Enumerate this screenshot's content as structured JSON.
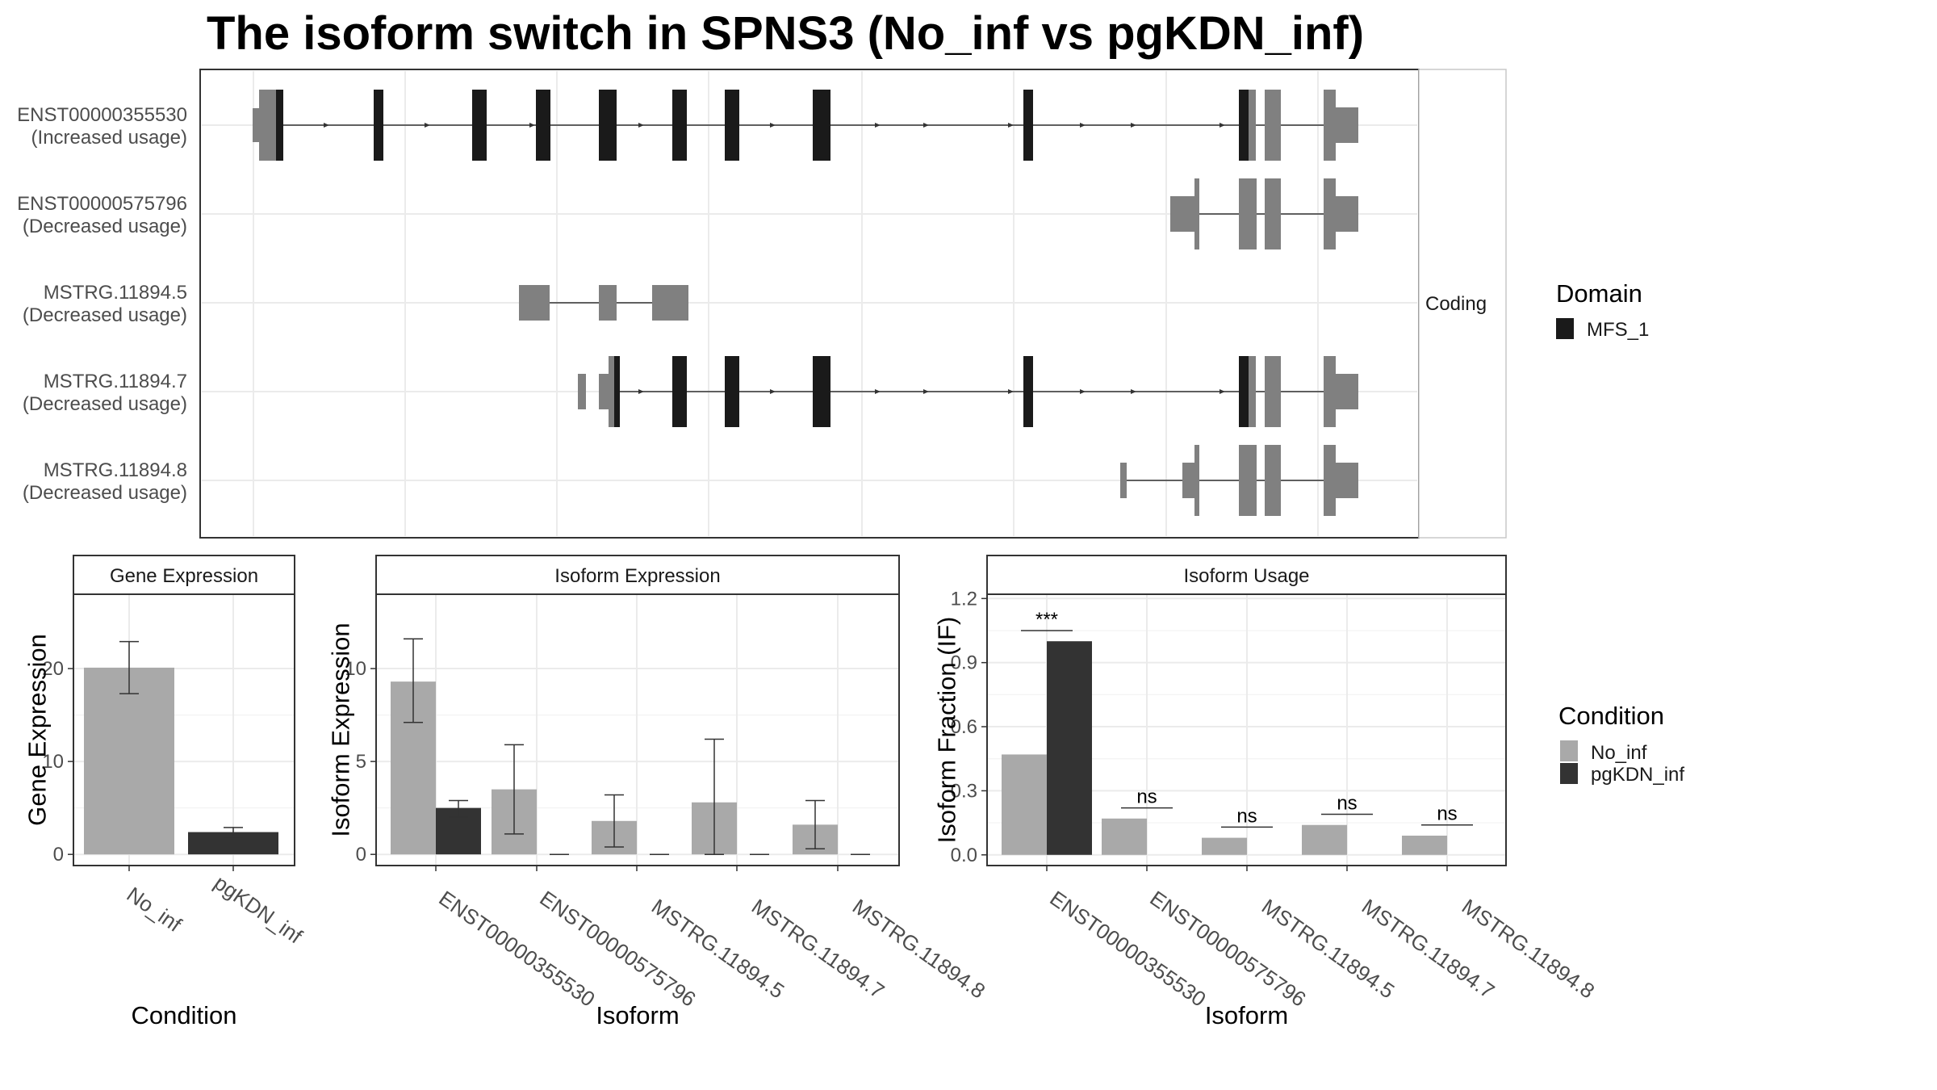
{
  "title": "The isoform switch in SPNS3 (No_inf vs pgKDN_inf)",
  "colors": {
    "no_inf": "#a9a9a9",
    "pgkdn_inf": "#333333",
    "domain": "#1a1a1a",
    "utr": "#808080",
    "grid": "#ebebeb"
  },
  "structure": {
    "strip_label": "Coding",
    "transcripts": [
      {
        "id": "ENST00000355530",
        "usage": "(Increased usage)"
      },
      {
        "id": "ENST00000575796",
        "usage": "(Decreased usage)"
      },
      {
        "id": "MSTRG.11894.5",
        "usage": "(Decreased usage)"
      },
      {
        "id": "MSTRG.11894.7",
        "usage": "(Decreased usage)"
      },
      {
        "id": "MSTRG.11894.8",
        "usage": "(Decreased usage)"
      }
    ],
    "legend": {
      "title": "Domain",
      "items": [
        "MFS_1"
      ]
    }
  },
  "condition_legend": {
    "title": "Condition",
    "items": [
      "No_inf",
      "pgKDN_inf"
    ]
  },
  "chart_data": [
    {
      "type": "bar",
      "panel_title": "Gene Expression",
      "xlabel": "Condition",
      "ylabel": "Gene Expression",
      "categories": [
        "No_inf",
        "pgKDN_inf"
      ],
      "values": [
        20.1,
        2.4
      ],
      "error_low": [
        17.3,
        1.9
      ],
      "error_high": [
        22.9,
        2.9
      ],
      "ylim": [
        -1.2,
        28
      ],
      "yticks": [
        0,
        10,
        20
      ]
    },
    {
      "type": "bar",
      "panel_title": "Isoform Expression",
      "xlabel": "Isoform",
      "ylabel": "Isoform Expression",
      "categories": [
        "ENST00000355530",
        "ENST00000575796",
        "MSTRG.11894.5",
        "MSTRG.11894.7",
        "MSTRG.11894.8"
      ],
      "series": [
        {
          "name": "No_inf",
          "values": [
            9.3,
            3.5,
            1.8,
            2.8,
            1.6
          ],
          "error_low": [
            7.1,
            1.1,
            0.4,
            0.0,
            0.3
          ],
          "error_high": [
            11.6,
            5.9,
            3.2,
            6.2,
            2.9
          ]
        },
        {
          "name": "pgKDN_inf",
          "values": [
            2.5,
            0.0,
            0.0,
            0.0,
            0.0
          ],
          "error_low": [
            2.0,
            0.0,
            0.0,
            0.0,
            0.0
          ],
          "error_high": [
            2.9,
            0.0,
            0.0,
            0.0,
            0.0
          ]
        }
      ],
      "ylim": [
        -0.6,
        14
      ],
      "yticks": [
        0,
        5,
        10
      ]
    },
    {
      "type": "bar",
      "panel_title": "Isoform Usage",
      "xlabel": "Isoform",
      "ylabel": "Isoform Fraction (IF)",
      "categories": [
        "ENST00000355530",
        "ENST00000575796",
        "MSTRG.11894.5",
        "MSTRG.11894.7",
        "MSTRG.11894.8"
      ],
      "series": [
        {
          "name": "No_inf",
          "values": [
            0.47,
            0.17,
            0.08,
            0.14,
            0.09
          ]
        },
        {
          "name": "pgKDN_inf",
          "values": [
            1.0,
            0.0,
            0.0,
            0.0,
            0.0
          ]
        }
      ],
      "significance": [
        "***",
        "ns",
        "ns",
        "ns",
        "ns"
      ],
      "ylim": [
        -0.05,
        1.22
      ],
      "yticks": [
        0.0,
        0.3,
        0.6,
        0.9,
        1.2
      ],
      "ytick_labels": [
        "0.0",
        "0.3",
        "0.6",
        "0.9",
        "1.2"
      ]
    }
  ]
}
